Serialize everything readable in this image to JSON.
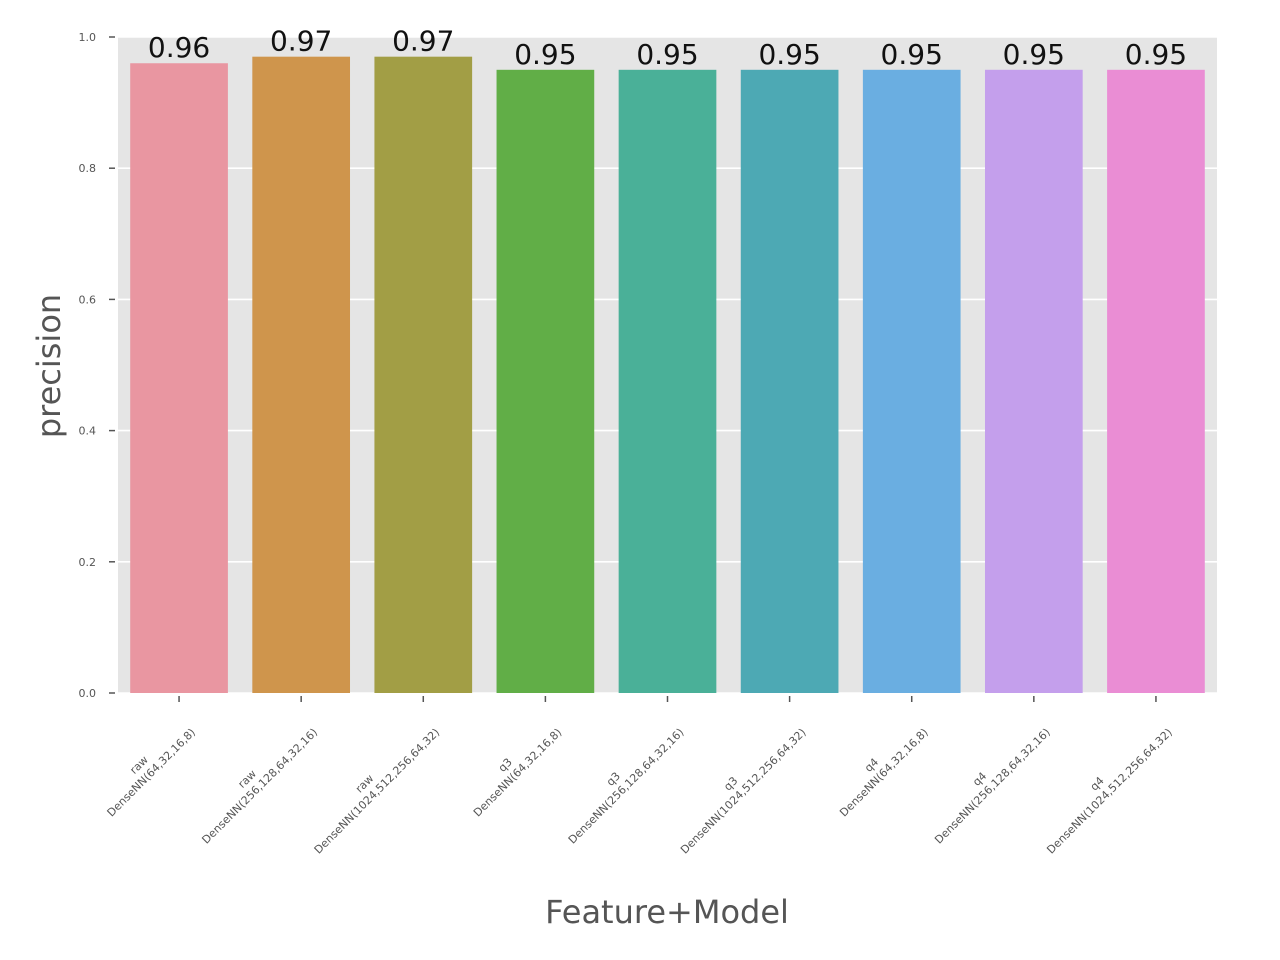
{
  "chart_data": {
    "type": "bar",
    "xlabel": "Feature+Model",
    "ylabel": "precision",
    "ylim": [
      0,
      1.0
    ],
    "yticks": [
      "0.0",
      "0.2",
      "0.4",
      "0.6",
      "0.8",
      "1.0"
    ],
    "grid": true,
    "categories": [
      [
        "raw",
        "DenseNN(64,32,16,8)"
      ],
      [
        "raw",
        "DenseNN(256,128,64,32,16)"
      ],
      [
        "raw",
        "DenseNN(1024,512,256,64,32)"
      ],
      [
        "q3",
        "DenseNN(64,32,16,8)"
      ],
      [
        "q3",
        "DenseNN(256,128,64,32,16)"
      ],
      [
        "q3",
        "DenseNN(1024,512,256,64,32)"
      ],
      [
        "q4",
        "DenseNN(64,32,16,8)"
      ],
      [
        "q4",
        "DenseNN(256,128,64,32,16)"
      ],
      [
        "q4",
        "DenseNN(1024,512,256,64,32)"
      ]
    ],
    "values": [
      0.96,
      0.97,
      0.97,
      0.95,
      0.95,
      0.95,
      0.95,
      0.95,
      0.95
    ],
    "value_labels": [
      "0.96",
      "0.97",
      "0.97",
      "0.95",
      "0.95",
      "0.95",
      "0.95",
      "0.95",
      "0.95"
    ],
    "colors": [
      "#e996a1",
      "#cf954c",
      "#a29e45",
      "#61ae47",
      "#4ab098",
      "#4da9b4",
      "#6aaee1",
      "#c49fec",
      "#ea8dd4"
    ],
    "background_color": "#e5e5e5",
    "grid_color": "#ffffff"
  }
}
